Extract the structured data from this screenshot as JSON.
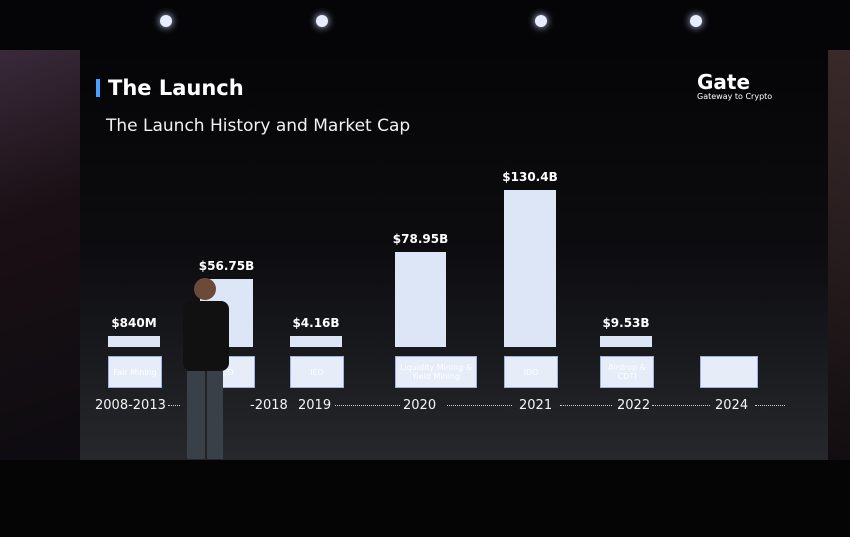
{
  "slide": {
    "title": "The Launch",
    "subtitle": "The Launch History and Market Cap",
    "logo": {
      "name": "Gate",
      "tagline": "Gateway to Crypto"
    },
    "accent_color": "#4aa0ff",
    "bar_color": "#dde6f7"
  },
  "chart_data": {
    "type": "bar",
    "title": "The Launch History and Market Cap",
    "categories": [
      "2008-2013",
      "-2018",
      "2019",
      "2020",
      "2021",
      "2022",
      "2024"
    ],
    "methods": [
      "Fair Mining",
      "CO",
      "IEO",
      "Liquidity Mining & Yield Mining",
      "IDO",
      "Airdrop & CDTI",
      ""
    ],
    "values_billion_usd": [
      0.84,
      56.75,
      4.16,
      78.95,
      130.4,
      9.53,
      null
    ],
    "data_labels": [
      "$840M",
      "$56.75B",
      "$4.16B",
      "$78.95B",
      "$130.4B",
      "$9.53B",
      ""
    ],
    "grid": false,
    "legend": "none"
  }
}
